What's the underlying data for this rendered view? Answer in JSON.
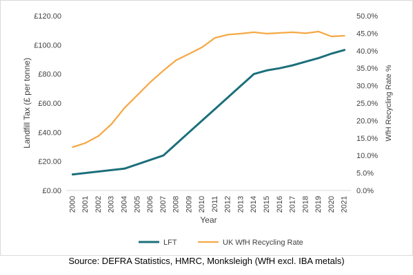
{
  "chart_data": {
    "type": "line",
    "x": [
      "2000",
      "2001",
      "2002",
      "2003",
      "2004",
      "2005",
      "2006",
      "2007",
      "2008",
      "2009",
      "2010",
      "2011",
      "2012",
      "2013",
      "2014",
      "2015",
      "2016",
      "2017",
      "2018",
      "2019",
      "2020",
      "2021"
    ],
    "series": [
      {
        "name": "LFT",
        "axis": "left",
        "color": "#1b6f7a",
        "values": [
          11,
          12,
          13,
          14,
          15,
          18,
          21,
          24,
          32,
          40,
          48,
          56,
          64,
          72,
          80,
          82.5,
          84,
          86,
          88.5,
          91,
          94,
          96.5
        ]
      },
      {
        "name": "UK WfH Recycling Rate",
        "axis": "right",
        "color": "#f5a843",
        "values": [
          12.4,
          13.6,
          15.6,
          19.0,
          23.6,
          27.3,
          31.0,
          34.3,
          37.3,
          39.1,
          41.0,
          43.7,
          44.6,
          44.9,
          45.3,
          44.9,
          45.1,
          45.3,
          45.0,
          45.5,
          44.1,
          44.3
        ]
      }
    ],
    "xlabel": "Year",
    "ylabel": "Landfill Tax (£ per tonne)",
    "y2label": "WfH Recycling Rate %",
    "ylim": [
      0,
      120
    ],
    "y2lim": [
      0,
      0.5
    ],
    "yticks": [
      "£0.00",
      "£20.00",
      "£40.00",
      "£60.00",
      "£80.00",
      "£100.00",
      "£120.00"
    ],
    "y2ticks": [
      "0.0%",
      "5.0%",
      "10.0%",
      "15.0%",
      "20.0%",
      "25.0%",
      "30.0%",
      "35.0%",
      "40.0%",
      "45.0%",
      "50.0%"
    ],
    "grid": false,
    "legend_position": "bottom"
  },
  "source": "Source: DEFRA Statistics, HMRC, Monksleigh (WfH excl. IBA metals)"
}
